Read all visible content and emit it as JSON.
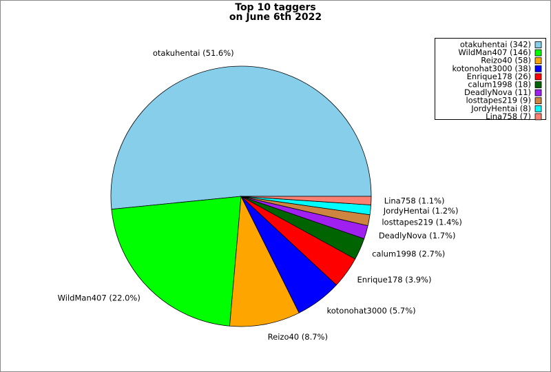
{
  "chart_data": {
    "type": "pie",
    "title": [
      "Top 10 taggers",
      "on June 6th 2022"
    ],
    "categories": [
      "otakuhentai",
      "WildMan407",
      "Reizo40",
      "kotonohat3000",
      "Enrique178",
      "calum1998",
      "DeadlyNova",
      "losttapes219",
      "JordyHentai",
      "Lina758"
    ],
    "values": [
      342,
      146,
      58,
      38,
      26,
      18,
      11,
      9,
      8,
      7
    ],
    "value_labels": [
      "otakuhentai (342)",
      "WildMan407 (146)",
      "Reizo40 (58)",
      "kotonohat3000 (38)",
      "Enrique178 (26)",
      "calum1998 (18)",
      "DeadlyNova (11)",
      "losttapes219 (9)",
      "JordyHentai (8)",
      "Lina758 (7)"
    ],
    "slice_labels": [
      "otakuhentai (51.6%)",
      "WildMan407 (22.0%)",
      "Reizo40 (8.7%)",
      "kotonohat3000 (5.7%)",
      "Enrique178 (3.9%)",
      "calum1998 (2.7%)",
      "DeadlyNova (1.7%)",
      "losttapes219 (1.4%)",
      "JordyHentai (1.2%)",
      "Lina758 (1.1%)"
    ],
    "colors": [
      "#87ceeb",
      "#00ff00",
      "#ffa500",
      "#0000ff",
      "#ff0000",
      "#006400",
      "#a020f0",
      "#cd853f",
      "#00ffff",
      "#fa8072"
    ],
    "legend": "upper right"
  }
}
